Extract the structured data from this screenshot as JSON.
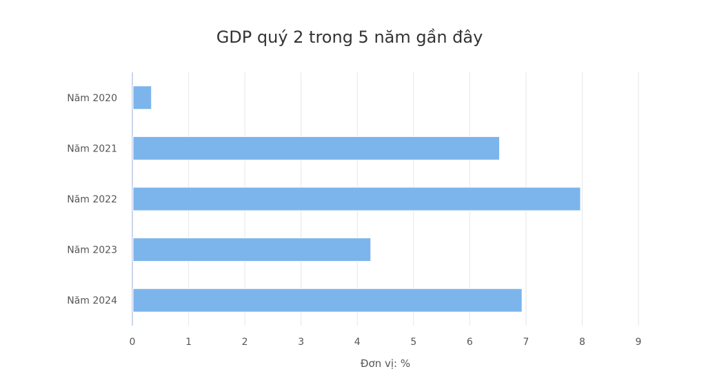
{
  "chart_data": {
    "type": "bar",
    "orientation": "horizontal",
    "title": "GDP quý 2 trong 5 năm gần đây",
    "categories": [
      "Năm 2020",
      "Năm 2021",
      "Năm 2022",
      "Năm 2023",
      "Năm 2024"
    ],
    "values": [
      0.34,
      6.53,
      7.97,
      4.24,
      6.93
    ],
    "xlabel": "Đơn vị: %",
    "ylabel": "",
    "xlim": [
      0,
      9
    ],
    "xticks": [
      "0",
      "1",
      "2",
      "3",
      "4",
      "5",
      "6",
      "7",
      "8",
      "9"
    ],
    "grid": true,
    "legend": "none",
    "bar_color": "#7cb5ec"
  }
}
